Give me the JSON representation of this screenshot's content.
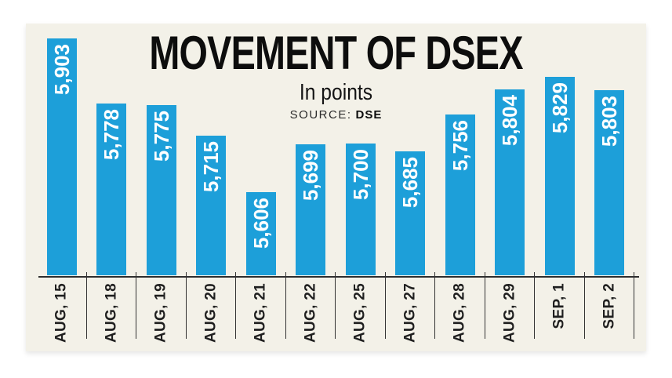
{
  "card": {
    "background": "#f3f1e8"
  },
  "header": {
    "title": "MOVEMENT OF DSEX",
    "subtitle": "In points",
    "source_label": "SOURCE:",
    "source_value": "DSE"
  },
  "chart_data": {
    "type": "bar",
    "title": "MOVEMENT OF DSEX",
    "subtitle": "In points",
    "source": "SOURCE: DSE",
    "categories": [
      "AUG, 15",
      "AUG, 18",
      "AUG, 19",
      "AUG, 20",
      "AUG, 21",
      "AUG, 22",
      "AUG, 25",
      "AUG, 27",
      "AUG, 28",
      "AUG, 29",
      "SEP, 1",
      "SEP, 2"
    ],
    "values": [
      5903,
      5778,
      5775,
      5715,
      5606,
      5699,
      5700,
      5685,
      5756,
      5804,
      5829,
      5803
    ],
    "value_labels": [
      "5,903",
      "5,778",
      "5,775",
      "5,715",
      "5,606",
      "5,699",
      "5,700",
      "5,685",
      "5,756",
      "5,804",
      "5,829",
      "5,803"
    ],
    "xlabel": "",
    "ylabel": "",
    "ylim": [
      5445,
      5920
    ],
    "grid": false,
    "legend": false,
    "bar_color": "#1d9fd9",
    "value_label_color": "#ffffff",
    "axis_line_color": "#2e2e2e",
    "tick_line_color": "#333333",
    "label_color": "#1f1f1f"
  }
}
